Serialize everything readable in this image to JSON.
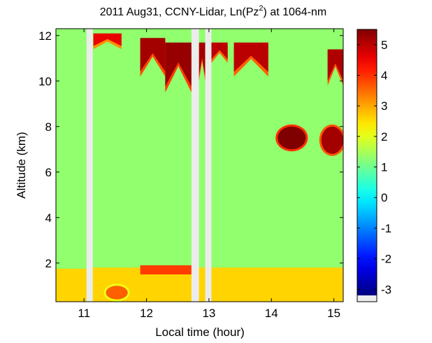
{
  "chart_data": {
    "type": "heatmap",
    "title_parts": {
      "prefix": "2011 Aug31, CCNY-Lidar, Ln(Pz",
      "sup": "2",
      "suffix": ") at 1064-nm"
    },
    "xlabel": "Local time (hour)",
    "ylabel": "Altitude (km)",
    "xlim": [
      10.55,
      15.15
    ],
    "ylim": [
      0.3,
      12.3
    ],
    "x_ticks": [
      11,
      12,
      13,
      14,
      15
    ],
    "y_ticks": [
      2,
      4,
      6,
      8,
      10,
      12
    ],
    "colorbar": {
      "range": [
        -3.2,
        5.5
      ],
      "ticks": [
        -3,
        -2,
        -1,
        0,
        1,
        2,
        3,
        4,
        5
      ],
      "colormap": "jet",
      "no_data_color": "#ececec"
    },
    "no_data_gaps": [
      [
        11.04,
        11.14
      ],
      [
        12.72,
        12.84
      ],
      [
        12.94,
        13.04
      ]
    ],
    "background_level": 1.3,
    "features": [
      {
        "kind": "boundary-layer",
        "t": [
          10.55,
          11.04
        ],
        "z": [
          0.3,
          1.75
        ],
        "value": 2.6
      },
      {
        "kind": "boundary-layer",
        "t": [
          11.14,
          15.15
        ],
        "z": [
          0.3,
          1.8
        ],
        "value": 2.6
      },
      {
        "kind": "aerosol-plume",
        "t": [
          11.35,
          11.7
        ],
        "z": [
          0.4,
          1.0
        ],
        "value": 3.6
      },
      {
        "kind": "boundary-layer-top",
        "t": [
          11.9,
          12.72
        ],
        "z": [
          1.5,
          1.9
        ],
        "value": 3.9
      },
      {
        "kind": "cirrus",
        "t": [
          11.15,
          11.6
        ],
        "z": [
          11.4,
          12.0
        ],
        "value": 4.6
      },
      {
        "kind": "cirrus",
        "t": [
          11.9,
          12.3
        ],
        "z": [
          10.2,
          11.8
        ],
        "value": 5.2
      },
      {
        "kind": "cirrus",
        "t": [
          12.3,
          12.72
        ],
        "z": [
          9.5,
          11.6
        ],
        "value": 5.3
      },
      {
        "kind": "cirrus",
        "t": [
          12.84,
          12.94
        ],
        "z": [
          10.0,
          11.6
        ],
        "value": 5.2
      },
      {
        "kind": "cirrus",
        "t": [
          13.04,
          13.3
        ],
        "z": [
          10.8,
          11.6
        ],
        "value": 5.0
      },
      {
        "kind": "cirrus",
        "t": [
          13.4,
          13.95
        ],
        "z": [
          10.2,
          11.6
        ],
        "value": 5.0
      },
      {
        "kind": "cirrus",
        "t": [
          14.9,
          15.15
        ],
        "z": [
          9.8,
          11.3
        ],
        "value": 5.1
      },
      {
        "kind": "cloud-layer",
        "t": [
          14.1,
          14.55
        ],
        "z": [
          7.0,
          8.0
        ],
        "value": 5.5
      },
      {
        "kind": "cloud-layer",
        "t": [
          14.8,
          15.15
        ],
        "z": [
          6.8,
          8.0
        ],
        "value": 5.2
      }
    ]
  }
}
